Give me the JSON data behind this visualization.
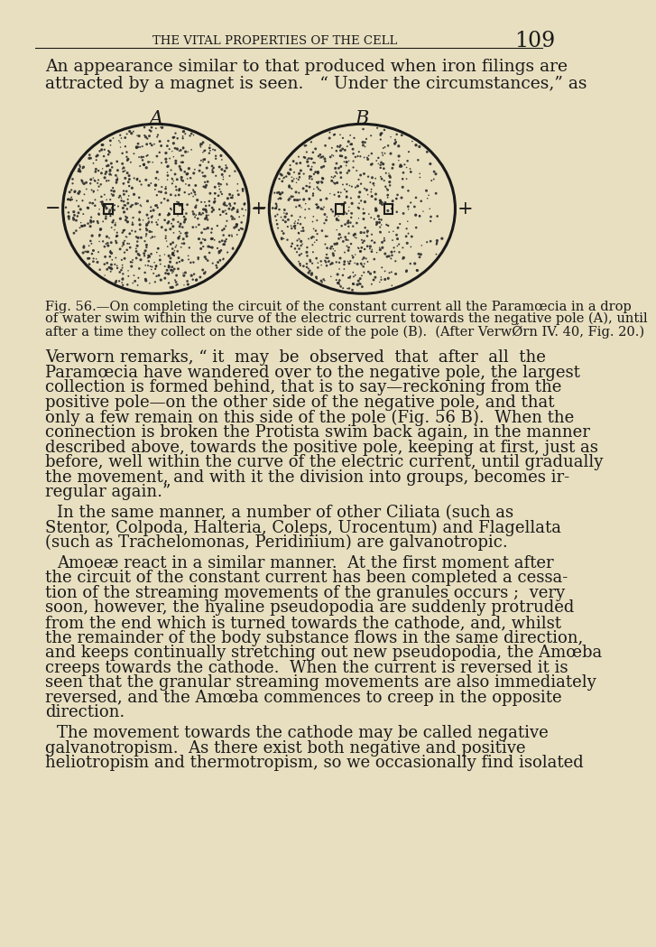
{
  "background_color": "#e8dfc0",
  "page_number": "109",
  "header_text": "THE VITAL PROPERTIES OF THE CELL",
  "body_text_top_1": "An appearance similar to that produced when iron filings are",
  "body_text_top_2": "attracted by a magnet is seen.   “ Under the circumstances,” as",
  "label_A": "A",
  "label_B": "B",
  "fig_caption_lines": [
    "Fig. 56.—On completing the circuit of the constant current all the Paramœcia in a drop",
    "of water swim within the curve of the electric current towards the negative pole (A), until",
    "after a time they collect on the other side of the pole (B).  (After VerwǾrn IV. 40, Fig. 20.)"
  ],
  "body_paragraphs": [
    [
      "Verworn remarks, “ it  may  be  observed  that  after  all  the",
      "Paramœcia have wandered over to the negative pole, the largest",
      "collection is formed behind, that is to say—reckoning from the",
      "positive pole—on the other side of the negative pole, and that",
      "only a few remain on this side of the pole (Fig. 56 B).  When the",
      "connection is broken the Protista swim back again, in the manner",
      "described above, towards the positive pole, keeping at first, just as",
      "before, well within the curve of the electric current, until gradually",
      "the movement, and with it the division into groups, becomes ir-",
      "regular again.”"
    ],
    [
      "In the same manner, a number of other Ciliata (such as",
      "Stentor, Colpoda, Halteria, Coleps, Urocentum) and Flagellata",
      "(such as Trachelomonas, Peridinium) are galvanotropic."
    ],
    [
      "Amoeæ react in a similar manner.  At the first moment after",
      "the circuit of the constant current has been completed a cessa-",
      "tion of the streaming movements of the granules occurs ;  very",
      "soon, however, the hyaline pseudopodia are suddenly protruded",
      "from the end which is turned towards the cathode, and, whilst",
      "the remainder of the body substance flows in the same direction,",
      "and keeps continually stretching out new pseudopodia, the Amœba",
      "creeps towards the cathode.  When the current is reversed it is",
      "seen that the granular streaming movements are also immediately",
      "reversed, and the Amœba commences to creep in the opposite",
      "direction."
    ],
    [
      "The movement towards the cathode may be called negative",
      "galvanotropism.  As there exist both negative and positive",
      "heliotropism and thermotropism, so we occasionally find isolated"
    ]
  ],
  "text_color": "#1a1a1a",
  "circle_color": "#1a1a1a",
  "dot_color": "#2a2a2a"
}
